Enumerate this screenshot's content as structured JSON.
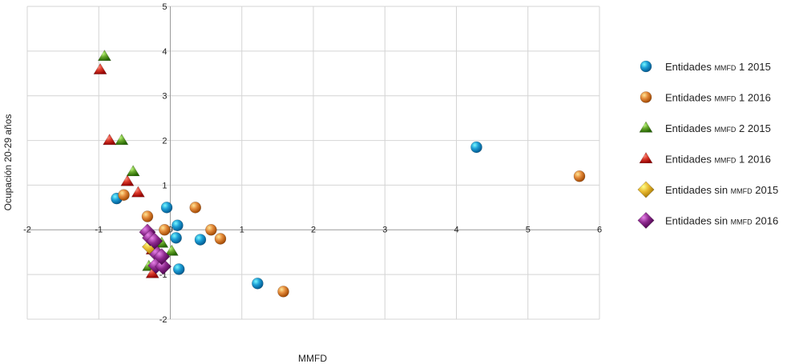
{
  "chart_data": {
    "type": "scatter",
    "xlabel": "MMFD",
    "ylabel": "Ocupación 20-29 años",
    "xlim": [
      -2,
      6
    ],
    "ylim": [
      -2,
      5
    ],
    "x_ticks": [
      -2,
      -1,
      0,
      1,
      2,
      3,
      4,
      5,
      6
    ],
    "y_ticks": [
      -2,
      -1,
      0,
      1,
      2,
      3,
      4,
      5
    ],
    "x_tick_labels": [
      "-2",
      "-1",
      "0",
      "1",
      "2",
      "3",
      "4",
      "5",
      "6"
    ],
    "y_tick_labels": [
      "-2",
      "-1",
      "",
      "1",
      "2",
      "3",
      "4",
      "5"
    ],
    "grid": true,
    "legend_position": "right",
    "series": [
      {
        "name": "Entidades MMFD 1 2015",
        "marker": "circle",
        "color": "#1e9fd6",
        "points": [
          {
            "x": -0.75,
            "y": 0.7
          },
          {
            "x": -0.05,
            "y": 0.5
          },
          {
            "x": 0.1,
            "y": 0.1
          },
          {
            "x": 0.08,
            "y": -0.18
          },
          {
            "x": 0.42,
            "y": -0.22
          },
          {
            "x": 0.12,
            "y": -0.88
          },
          {
            "x": 1.22,
            "y": -1.2
          },
          {
            "x": 4.28,
            "y": 1.85
          }
        ]
      },
      {
        "name": "Entidades MMFD 1 2016",
        "marker": "circle",
        "color": "#e58c3c",
        "points": [
          {
            "x": -0.65,
            "y": 0.78
          },
          {
            "x": -0.32,
            "y": 0.3
          },
          {
            "x": 0.35,
            "y": 0.5
          },
          {
            "x": -0.08,
            "y": 0.0
          },
          {
            "x": 0.57,
            "y": 0.0
          },
          {
            "x": 0.7,
            "y": -0.2
          },
          {
            "x": 1.58,
            "y": -1.38
          },
          {
            "x": 5.72,
            "y": 1.2
          }
        ]
      },
      {
        "name": "Entidades MMFD 2 2015",
        "marker": "triangle",
        "color": "#6aaa2e",
        "points": [
          {
            "x": -0.92,
            "y": 3.88
          },
          {
            "x": -0.68,
            "y": 2.0
          },
          {
            "x": -0.52,
            "y": 1.3
          },
          {
            "x": -0.12,
            "y": -0.3
          },
          {
            "x": 0.02,
            "y": -0.48
          },
          {
            "x": -0.3,
            "y": -0.82
          }
        ]
      },
      {
        "name": "Entidades MMFD 1 2016",
        "marker": "triangle",
        "color": "#d93829",
        "points": [
          {
            "x": -0.98,
            "y": 3.58
          },
          {
            "x": -0.85,
            "y": 2.0
          },
          {
            "x": -0.6,
            "y": 1.08
          },
          {
            "x": -0.45,
            "y": 0.83
          },
          {
            "x": -0.25,
            "y": -0.45
          },
          {
            "x": -0.25,
            "y": -0.98
          }
        ]
      },
      {
        "name": "Entidades sin MMFD 2015",
        "marker": "diamond",
        "color": "#e8b92f",
        "points": [
          {
            "x": -0.28,
            "y": -0.38
          },
          {
            "x": -0.18,
            "y": -0.55
          }
        ]
      },
      {
        "name": "Entidades sin MMFD 2016",
        "marker": "diamond",
        "color": "#8e2a8f",
        "points": [
          {
            "x": -0.32,
            "y": -0.05
          },
          {
            "x": -0.28,
            "y": -0.18
          },
          {
            "x": -0.22,
            "y": -0.25
          },
          {
            "x": -0.18,
            "y": -0.55
          },
          {
            "x": -0.2,
            "y": -0.8
          },
          {
            "x": -0.1,
            "y": -0.82
          },
          {
            "x": -0.12,
            "y": -0.6
          }
        ]
      }
    ],
    "legend": {
      "items": [
        {
          "prefix": "Entidades ",
          "smallcaps": "mmfd",
          "suffix": " 1 2015"
        },
        {
          "prefix": "Entidades ",
          "smallcaps": "mmfd",
          "suffix": " 1 2016"
        },
        {
          "prefix": "Entidades ",
          "smallcaps": "mmfd",
          "suffix": " 2 2015"
        },
        {
          "prefix": "Entidades ",
          "smallcaps": "mmfd",
          "suffix": " 1 2016"
        },
        {
          "prefix": "Entidades sin ",
          "smallcaps": "mmfd",
          "suffix": " 2015"
        },
        {
          "prefix": "Entidades sin ",
          "smallcaps": "mmfd",
          "suffix": " 2016"
        }
      ]
    }
  }
}
